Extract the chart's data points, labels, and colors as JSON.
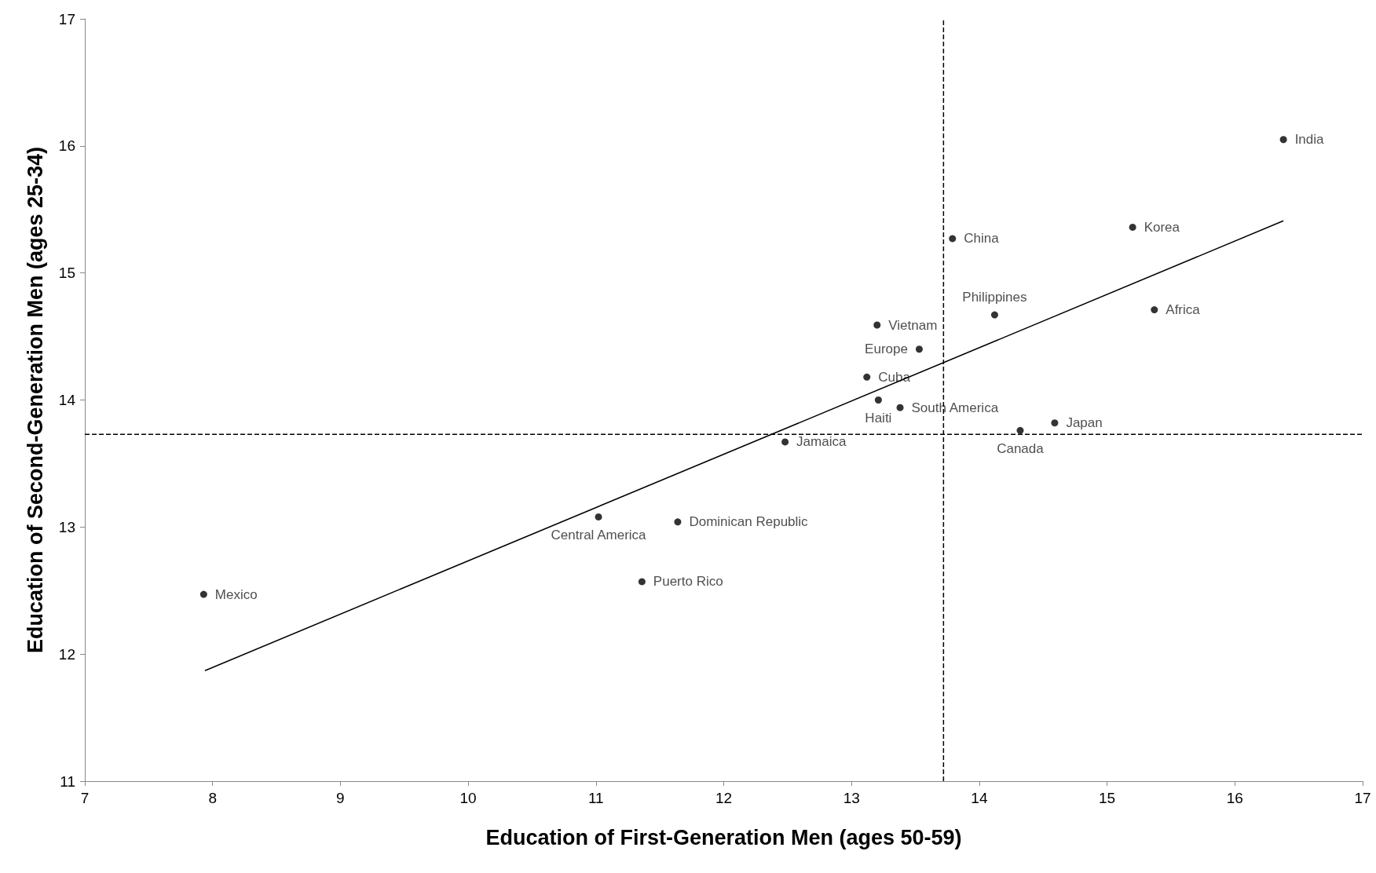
{
  "chart_data": {
    "type": "scatter",
    "xlabel": "Education of First-Generation Men (ages 50-59)",
    "ylabel": "Education of Second-Generation Men (ages 25-34)",
    "xlim": [
      7,
      17
    ],
    "xticks": [
      7,
      8,
      9,
      10,
      11,
      12,
      13,
      14,
      15,
      16,
      17
    ],
    "ylim": [
      11,
      17
    ],
    "yticks": [
      11,
      12,
      13,
      14,
      15,
      16,
      17
    ],
    "grid": false,
    "series": [
      {
        "marker": "circle",
        "color": "#000000",
        "x": [
          7.93,
          11.02,
          11.64,
          11.36,
          12.48,
          13.21,
          13.12,
          13.2,
          13.53,
          13.38,
          13.79,
          14.12,
          14.32,
          14.59,
          15.2,
          15.37,
          16.38
        ],
        "values": [
          12.47,
          13.08,
          13.04,
          12.57,
          13.67,
          14.0,
          14.18,
          14.59,
          14.4,
          13.94,
          15.27,
          14.67,
          13.76,
          13.82,
          15.36,
          14.71,
          16.05
        ],
        "value_labels": [
          "Mexico",
          "Central America",
          "Dominican Republic",
          "Puerto Rico",
          "Jamaica",
          "Haiti",
          "Cuba",
          "Vietnam",
          "Europe",
          "South America",
          "China",
          "Philippines",
          "Canada",
          "Japan",
          "Korea",
          "Africa",
          "India"
        ]
      },
      {
        "type": "line",
        "marker": "none",
        "color": "#000000",
        "x": [
          7.94,
          16.38
        ],
        "values": [
          11.87,
          15.41
        ]
      }
    ],
    "ref_lines": [
      {
        "axis": "x",
        "value": 13.72,
        "color": "#000000",
        "line_style": "dashed"
      },
      {
        "axis": "y",
        "value": 13.73,
        "color": "#000000",
        "line_style": "dashed"
      }
    ]
  }
}
